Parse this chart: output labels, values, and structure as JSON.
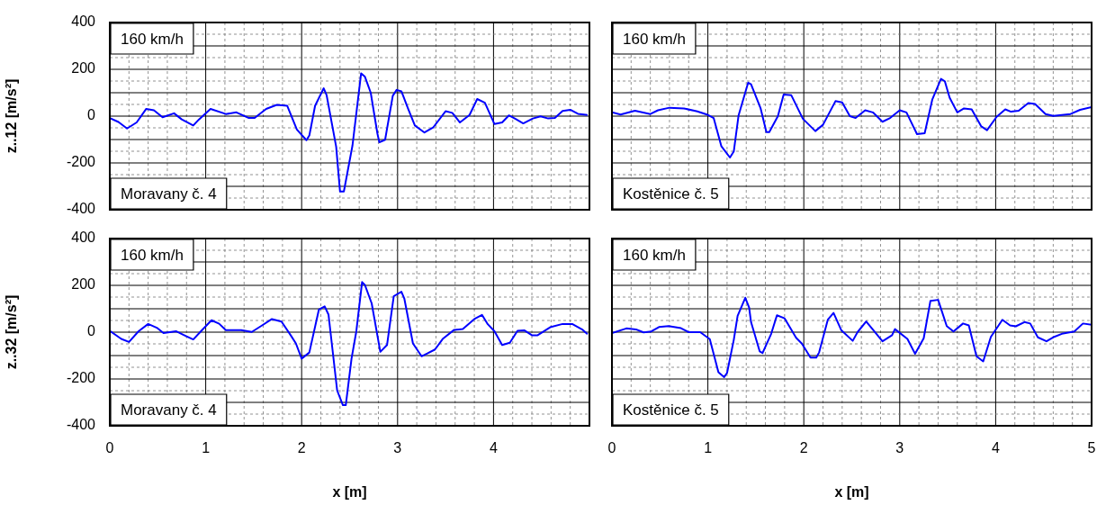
{
  "chart_data": [
    {
      "type": "line",
      "ylabel": "z..12 [m/s²]",
      "annotations": [
        "160 km/h",
        "Moravany č. 4"
      ],
      "xlim": [
        0,
        5
      ],
      "ylim": [
        -400,
        400
      ],
      "grid": true,
      "tick_labels": "y",
      "legend": false,
      "marker": "none",
      "line_style": "solid",
      "xticks": [
        0,
        {
          "value": 0.2,
          "label": null
        },
        {
          "value": 0.4,
          "label": null
        },
        {
          "value": 0.6,
          "label": null
        },
        {
          "value": 0.8,
          "label": null
        },
        1,
        {
          "value": 1.2,
          "label": null
        },
        {
          "value": 1.4,
          "label": null
        },
        {
          "value": 1.6,
          "label": null
        },
        {
          "value": 1.8,
          "label": null
        },
        2,
        {
          "value": 2.2,
          "label": null
        },
        {
          "value": 2.4,
          "label": null
        },
        {
          "value": 2.6,
          "label": null
        },
        {
          "value": 2.8,
          "label": null
        },
        3,
        {
          "value": 3.2,
          "label": null
        },
        {
          "value": 3.4,
          "label": null
        },
        {
          "value": 3.6,
          "label": null
        },
        {
          "value": 3.8,
          "label": null
        },
        4,
        {
          "value": 4.2,
          "label": null
        },
        {
          "value": 4.4,
          "label": null
        },
        {
          "value": 4.6,
          "label": null
        },
        {
          "value": 4.8,
          "label": null
        },
        {
          "value": 5,
          "label": null
        }
      ],
      "yticks": [
        -400,
        {
          "value": -350,
          "label": null
        },
        {
          "value": -300,
          "label": null
        },
        {
          "value": -250,
          "label": null
        },
        -200,
        {
          "value": -150,
          "label": null
        },
        {
          "value": -100,
          "label": null
        },
        {
          "value": -50,
          "label": null
        },
        0,
        {
          "value": 50,
          "label": null
        },
        {
          "value": 100,
          "label": null
        },
        {
          "value": 150,
          "label": null
        },
        200,
        {
          "value": 250,
          "label": null
        },
        {
          "value": 300,
          "label": null
        },
        {
          "value": 350,
          "label": null
        },
        400
      ],
      "series": [
        {
          "color": "#0000ff",
          "x": [
            0,
            0.09,
            0.18,
            0.28,
            0.38,
            0.46,
            0.55,
            0.67,
            0.75,
            0.87,
            0.93,
            1.05,
            1.21,
            1.32,
            1.45,
            1.51,
            1.63,
            1.74,
            1.85,
            1.95,
            2.05,
            2.08,
            2.14,
            2.23,
            2.26,
            2.36,
            2.4,
            2.44,
            2.53,
            2.62,
            2.66,
            2.72,
            2.79,
            2.81,
            2.87,
            2.95,
            2.99,
            3.04,
            3.11,
            3.18,
            3.28,
            3.37,
            3.5,
            3.57,
            3.65,
            3.75,
            3.83,
            3.91,
            4.01,
            4.09,
            4.16,
            4.23,
            4.31,
            4.41,
            4.49,
            4.57,
            4.64,
            4.72,
            4.8,
            4.88,
            4.98
          ],
          "values": [
            -8,
            -25,
            -53,
            -27,
            31,
            25,
            -5,
            12,
            -14,
            -40,
            -14,
            31,
            9,
            16,
            -8,
            -8,
            31,
            48,
            44,
            -57,
            -103,
            -83,
            44,
            119,
            90,
            -131,
            -322,
            -322,
            -125,
            183,
            168,
            100,
            -75,
            -112,
            -101,
            87,
            112,
            106,
            31,
            -40,
            -70,
            -49,
            21,
            14,
            -27,
            5,
            73,
            57,
            -34,
            -27,
            3,
            -12,
            -31,
            -10,
            -1,
            -10,
            -8,
            22,
            27,
            10,
            5
          ]
        }
      ]
    },
    {
      "type": "line",
      "annotations": [
        "160 km/h",
        "Kostěnice č. 5"
      ],
      "xlim": [
        0,
        5
      ],
      "ylim": [
        -400,
        400
      ],
      "grid": true,
      "tick_labels": false,
      "legend": false,
      "marker": "none",
      "line_style": "solid",
      "xticks": [
        0,
        {
          "value": 0.2,
          "label": null
        },
        {
          "value": 0.4,
          "label": null
        },
        {
          "value": 0.6,
          "label": null
        },
        {
          "value": 0.8,
          "label": null
        },
        1,
        {
          "value": 1.2,
          "label": null
        },
        {
          "value": 1.4,
          "label": null
        },
        {
          "value": 1.6,
          "label": null
        },
        {
          "value": 1.8,
          "label": null
        },
        2,
        {
          "value": 2.2,
          "label": null
        },
        {
          "value": 2.4,
          "label": null
        },
        {
          "value": 2.6,
          "label": null
        },
        {
          "value": 2.8,
          "label": null
        },
        3,
        {
          "value": 3.2,
          "label": null
        },
        {
          "value": 3.4,
          "label": null
        },
        {
          "value": 3.6,
          "label": null
        },
        {
          "value": 3.8,
          "label": null
        },
        4,
        {
          "value": 4.2,
          "label": null
        },
        {
          "value": 4.4,
          "label": null
        },
        {
          "value": 4.6,
          "label": null
        },
        {
          "value": 4.8,
          "label": null
        },
        5
      ],
      "yticks": [
        -400,
        {
          "value": -350,
          "label": null
        },
        {
          "value": -300,
          "label": null
        },
        {
          "value": -250,
          "label": null
        },
        -200,
        {
          "value": -150,
          "label": null
        },
        {
          "value": -100,
          "label": null
        },
        {
          "value": -50,
          "label": null
        },
        0,
        {
          "value": 50,
          "label": null
        },
        {
          "value": 100,
          "label": null
        },
        {
          "value": 150,
          "label": null
        },
        200,
        {
          "value": 250,
          "label": null
        },
        {
          "value": 300,
          "label": null
        },
        {
          "value": 350,
          "label": null
        },
        400
      ],
      "series": [
        {
          "color": "#0000ff",
          "x": [
            0,
            0.09,
            0.24,
            0.4,
            0.48,
            0.6,
            0.75,
            0.89,
            0.99,
            1.06,
            1.14,
            1.23,
            1.27,
            1.32,
            1.42,
            1.45,
            1.55,
            1.61,
            1.64,
            1.73,
            1.79,
            1.87,
            1.99,
            2.12,
            2.2,
            2.33,
            2.4,
            2.48,
            2.54,
            2.64,
            2.72,
            2.82,
            2.9,
            3,
            3.07,
            3.18,
            3.26,
            3.34,
            3.43,
            3.47,
            3.52,
            3.6,
            3.67,
            3.75,
            3.85,
            3.91,
            4.01,
            4.1,
            4.16,
            4.24,
            4.34,
            4.41,
            4.52,
            4.6,
            4.78,
            4.88,
            5
          ],
          "values": [
            16,
            7,
            23,
            9,
            25,
            36,
            33,
            20,
            7,
            -8,
            -128,
            -177,
            -151,
            3,
            143,
            136,
            33,
            -68,
            -68,
            0,
            92,
            89,
            -11,
            -64,
            -37,
            64,
            59,
            0,
            -8,
            25,
            16,
            -24,
            -8,
            25,
            16,
            -77,
            -73,
            72,
            159,
            149,
            79,
            16,
            33,
            29,
            -44,
            -60,
            -3,
            29,
            19,
            23,
            56,
            52,
            9,
            1,
            9,
            27,
            39
          ]
        }
      ]
    },
    {
      "type": "line",
      "ylabel": "z..32 [m/s²]",
      "xlabel": "x [m]",
      "annotations": [
        "160 km/h",
        "Moravany č. 4"
      ],
      "xlim": [
        0,
        5
      ],
      "ylim": [
        -400,
        400
      ],
      "grid": true,
      "legend": false,
      "marker": "none",
      "line_style": "solid",
      "xticks": [
        0,
        {
          "value": 0.2,
          "label": null
        },
        {
          "value": 0.4,
          "label": null
        },
        {
          "value": 0.6,
          "label": null
        },
        {
          "value": 0.8,
          "label": null
        },
        1,
        {
          "value": 1.2,
          "label": null
        },
        {
          "value": 1.4,
          "label": null
        },
        {
          "value": 1.6,
          "label": null
        },
        {
          "value": 1.8,
          "label": null
        },
        2,
        {
          "value": 2.2,
          "label": null
        },
        {
          "value": 2.4,
          "label": null
        },
        {
          "value": 2.6,
          "label": null
        },
        {
          "value": 2.8,
          "label": null
        },
        3,
        {
          "value": 3.2,
          "label": null
        },
        {
          "value": 3.4,
          "label": null
        },
        {
          "value": 3.6,
          "label": null
        },
        {
          "value": 3.8,
          "label": null
        },
        4,
        {
          "value": 4.2,
          "label": null
        },
        {
          "value": 4.4,
          "label": null
        },
        {
          "value": 4.6,
          "label": null
        },
        {
          "value": 4.8,
          "label": null
        },
        {
          "value": 5,
          "label": null
        }
      ],
      "yticks": [
        -400,
        {
          "value": -350,
          "label": null
        },
        {
          "value": -300,
          "label": null
        },
        {
          "value": -250,
          "label": null
        },
        -200,
        {
          "value": -150,
          "label": null
        },
        {
          "value": -100,
          "label": null
        },
        {
          "value": -50,
          "label": null
        },
        0,
        {
          "value": 50,
          "label": null
        },
        {
          "value": 100,
          "label": null
        },
        {
          "value": 150,
          "label": null
        },
        200,
        {
          "value": 250,
          "label": null
        },
        {
          "value": 300,
          "label": null
        },
        {
          "value": 350,
          "label": null
        },
        400
      ],
      "series": [
        {
          "color": "#0000ff",
          "x": [
            0,
            0.12,
            0.2,
            0.3,
            0.4,
            0.49,
            0.56,
            0.69,
            0.77,
            0.87,
            0.95,
            1.06,
            1.14,
            1.21,
            1.37,
            1.48,
            1.58,
            1.69,
            1.79,
            1.89,
            1.94,
            2,
            2.08,
            2.18,
            2.24,
            2.28,
            2.37,
            2.43,
            2.46,
            2.52,
            2.57,
            2.63,
            2.66,
            2.73,
            2.82,
            2.89,
            2.96,
            3.04,
            3.07,
            3.16,
            3.25,
            3.31,
            3.39,
            3.47,
            3.59,
            3.68,
            3.8,
            3.88,
            3.94,
            4.01,
            4.09,
            4.17,
            4.25,
            4.32,
            4.4,
            4.46,
            4.59,
            4.72,
            4.82,
            4.93,
            4.98
          ],
          "values": [
            6,
            -29,
            -42,
            4,
            35,
            19,
            -4,
            4,
            -12,
            -31,
            4,
            51,
            36,
            9,
            9,
            1,
            27,
            56,
            45,
            -16,
            -48,
            -113,
            -87,
            97,
            110,
            75,
            -249,
            -312,
            -312,
            -113,
            4,
            214,
            201,
            123,
            -84,
            -55,
            153,
            173,
            144,
            -48,
            -103,
            -91,
            -74,
            -29,
            10,
            13,
            56,
            74,
            34,
            4,
            -55,
            -45,
            6,
            8,
            -13,
            -13,
            21,
            35,
            35,
            10,
            -9
          ]
        }
      ]
    },
    {
      "type": "line",
      "xlabel": "x [m]",
      "annotations": [
        "160 km/h",
        "Kostěnice č. 5"
      ],
      "xlim": [
        0,
        5
      ],
      "ylim": [
        -400,
        400
      ],
      "grid": true,
      "tick_labels": "x",
      "legend": false,
      "marker": "none",
      "line_style": "solid",
      "xticks": [
        0,
        {
          "value": 0.2,
          "label": null
        },
        {
          "value": 0.4,
          "label": null
        },
        {
          "value": 0.6,
          "label": null
        },
        {
          "value": 0.8,
          "label": null
        },
        1,
        {
          "value": 1.2,
          "label": null
        },
        {
          "value": 1.4,
          "label": null
        },
        {
          "value": 1.6,
          "label": null
        },
        {
          "value": 1.8,
          "label": null
        },
        2,
        {
          "value": 2.2,
          "label": null
        },
        {
          "value": 2.4,
          "label": null
        },
        {
          "value": 2.6,
          "label": null
        },
        {
          "value": 2.8,
          "label": null
        },
        3,
        {
          "value": 3.2,
          "label": null
        },
        {
          "value": 3.4,
          "label": null
        },
        {
          "value": 3.6,
          "label": null
        },
        {
          "value": 3.8,
          "label": null
        },
        4,
        {
          "value": 4.2,
          "label": null
        },
        {
          "value": 4.4,
          "label": null
        },
        {
          "value": 4.6,
          "label": null
        },
        {
          "value": 4.8,
          "label": null
        },
        5
      ],
      "yticks": [
        -400,
        {
          "value": -350,
          "label": null
        },
        {
          "value": -300,
          "label": null
        },
        {
          "value": -250,
          "label": null
        },
        -200,
        {
          "value": -150,
          "label": null
        },
        {
          "value": -100,
          "label": null
        },
        {
          "value": -50,
          "label": null
        },
        0,
        {
          "value": 50,
          "label": null
        },
        {
          "value": 100,
          "label": null
        },
        {
          "value": 150,
          "label": null
        },
        200,
        {
          "value": 250,
          "label": null
        },
        {
          "value": 300,
          "label": null
        },
        {
          "value": 350,
          "label": null
        },
        400
      ],
      "series": [
        {
          "color": "#0000ff",
          "x": [
            0,
            0.15,
            0.25,
            0.33,
            0.41,
            0.49,
            0.59,
            0.72,
            0.8,
            0.92,
            1.02,
            1.11,
            1.17,
            1.2,
            1.27,
            1.31,
            1.39,
            1.43,
            1.45,
            1.54,
            1.57,
            1.66,
            1.72,
            1.8,
            1.92,
            1.98,
            2.07,
            2.13,
            2.16,
            2.25,
            2.31,
            2.39,
            2.51,
            2.56,
            2.65,
            2.72,
            2.82,
            2.92,
            2.95,
            3.08,
            3.16,
            3.25,
            3.32,
            3.4,
            3.49,
            3.56,
            3.66,
            3.72,
            3.8,
            3.87,
            3.95,
            4.07,
            4.15,
            4.21,
            4.3,
            4.36,
            4.44,
            4.53,
            4.61,
            4.69,
            4.82,
            4.91,
            5
          ],
          "values": [
            -4,
            16,
            12,
            -1,
            3,
            22,
            26,
            17,
            0,
            0,
            -30,
            -171,
            -192,
            -174,
            -33,
            70,
            147,
            105,
            43,
            -82,
            -89,
            -7,
            72,
            59,
            -24,
            -49,
            -109,
            -109,
            -86,
            53,
            82,
            9,
            -37,
            0,
            46,
            11,
            -39,
            -13,
            13,
            -29,
            -92,
            -26,
            134,
            138,
            26,
            3,
            37,
            29,
            -103,
            -125,
            -20,
            53,
            29,
            25,
            43,
            37,
            -22,
            -39,
            -20,
            -7,
            3,
            37,
            32
          ]
        }
      ]
    }
  ]
}
